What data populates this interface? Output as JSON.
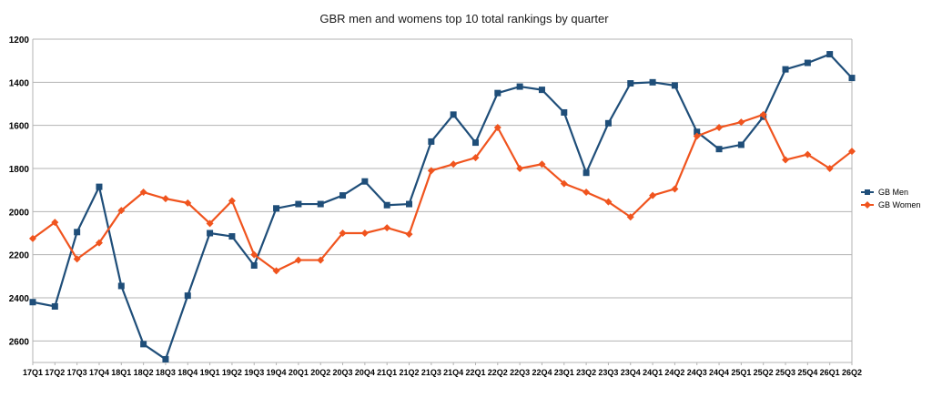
{
  "chart_data": {
    "type": "line",
    "title": "GBR men and womens top 10 total rankings by quarter",
    "xlabel": "",
    "ylabel": "",
    "ylim": [
      2700,
      1200
    ],
    "y_reversed": true,
    "y_ticks": [
      1200,
      1400,
      1600,
      1800,
      2000,
      2200,
      2400,
      2600
    ],
    "grid": "horizontal",
    "legend_position": "right",
    "categories": [
      "17Q1",
      "17Q2",
      "17Q3",
      "17Q4",
      "18Q1",
      "18Q2",
      "18Q3",
      "18Q4",
      "19Q1",
      "19Q2",
      "19Q3",
      "19Q4",
      "20Q1",
      "20Q2",
      "20Q3",
      "20Q4",
      "21Q1",
      "21Q2",
      "21Q3",
      "21Q4",
      "22Q1",
      "22Q2",
      "22Q3",
      "22Q4",
      "23Q1",
      "23Q2",
      "23Q3",
      "23Q4",
      "24Q1",
      "24Q2",
      "24Q3",
      "24Q4",
      "25Q1",
      "25Q2",
      "25Q3",
      "25Q4",
      "26Q1",
      "26Q2"
    ],
    "series": [
      {
        "name": "GB Men",
        "color": "#1f4e79",
        "marker": "square",
        "values": [
          2420,
          2440,
          2095,
          1885,
          2345,
          2615,
          2685,
          2390,
          2100,
          2115,
          2250,
          1985,
          1965,
          1965,
          1925,
          1860,
          1970,
          1965,
          1675,
          1550,
          1680,
          1450,
          1420,
          1435,
          1540,
          1820,
          1590,
          1405,
          1400,
          1415,
          1630,
          1710,
          1690,
          1560,
          1340,
          1310,
          1270,
          1380
        ]
      },
      {
        "name": "GB Women",
        "color": "#f0541e",
        "marker": "diamond",
        "values": [
          2125,
          2050,
          2220,
          2145,
          1995,
          1910,
          1940,
          1960,
          2055,
          1950,
          2200,
          2275,
          2225,
          2225,
          2100,
          2100,
          2075,
          2105,
          1810,
          1780,
          1750,
          1610,
          1800,
          1780,
          1870,
          1910,
          1955,
          2025,
          1925,
          1895,
          1650,
          1610,
          1585,
          1550,
          1760,
          1735,
          1800,
          1720
        ]
      }
    ]
  }
}
